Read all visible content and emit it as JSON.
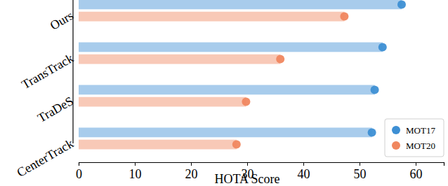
{
  "chart_data": {
    "type": "bar",
    "orientation": "horizontal",
    "marker": "circle",
    "x_label": "HOTA Score",
    "categories": [
      "Ours",
      "TransTrack",
      "TraDeS",
      "CenterTrack"
    ],
    "series": [
      {
        "name": "MOT17",
        "color": "#3d8fd4",
        "values": [
          57.5,
          54.1,
          52.7,
          52.2
        ]
      },
      {
        "name": "MOT20",
        "color": "#f0875f",
        "values": [
          47.3,
          35.9,
          29.8,
          28.1
        ]
      }
    ],
    "xlim": [
      0,
      65
    ],
    "xticks": [
      0,
      10,
      20,
      30,
      40,
      50,
      60
    ],
    "legend": "lower right",
    "grid": false
  }
}
